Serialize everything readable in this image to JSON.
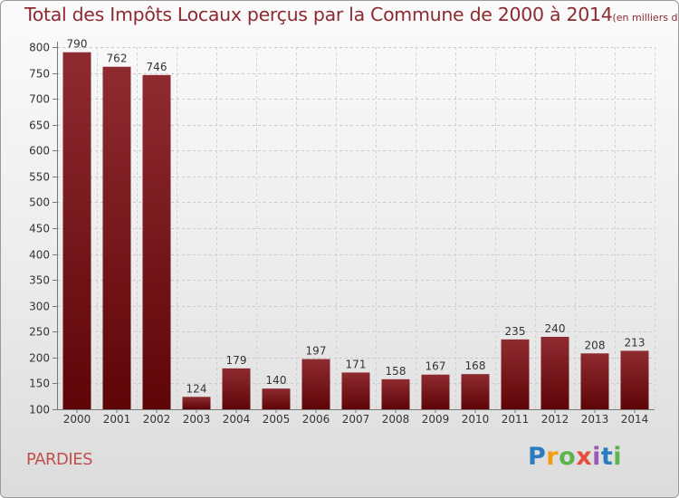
{
  "header": {
    "title": "Total des Impôts Locaux perçus par la Commune de 2000 à 2014",
    "unit": "(en milliers d'€)"
  },
  "footer": {
    "commune": "PARDIES",
    "logo": "Proxiti"
  },
  "colors": {
    "bar_top": "#8e2b31",
    "bar_bottom": "#5e0508",
    "title": "#8c2a2f",
    "commune": "#c0504d"
  },
  "chart_data": {
    "type": "bar",
    "title": "Total des Impôts Locaux perçus par la Commune de 2000 à 2014",
    "subtitle": "(en milliers d'€)",
    "xlabel": "",
    "ylabel": "",
    "categories": [
      "2000",
      "2001",
      "2002",
      "2003",
      "2004",
      "2005",
      "2006",
      "2007",
      "2008",
      "2009",
      "2010",
      "2011",
      "2012",
      "2013",
      "2014"
    ],
    "values": [
      790,
      762,
      746,
      124,
      179,
      140,
      197,
      171,
      158,
      167,
      168,
      235,
      240,
      208,
      213
    ],
    "ylim": [
      100,
      800
    ],
    "yticks": [
      100,
      150,
      200,
      250,
      300,
      350,
      400,
      450,
      500,
      550,
      600,
      650,
      700,
      750,
      800
    ],
    "grid": true,
    "data_labels": true
  }
}
